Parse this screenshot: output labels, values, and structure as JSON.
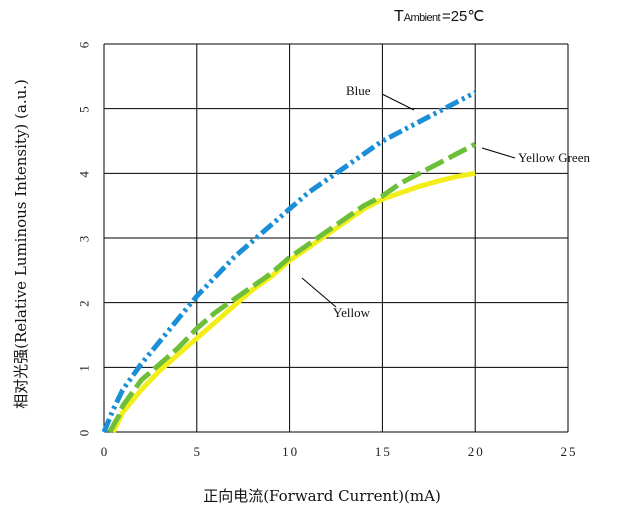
{
  "chart_data": {
    "type": "line",
    "annotation": {
      "prefix": "T",
      "subscript": "Ambient",
      "value": "=25℃"
    },
    "xlabel": "正向电流(Forward Current)(mA)",
    "ylabel": "相对光强(Relative Luminous Intensity) (a.u.)",
    "xlim": [
      0,
      25
    ],
    "ylim": [
      0,
      6
    ],
    "x_ticks": [
      "0",
      "5",
      "10",
      "15",
      "20",
      "25"
    ],
    "y_ticks": [
      "0",
      "1",
      "2",
      "3",
      "4",
      "5",
      "6"
    ],
    "grid": true,
    "colors": {
      "blue": "#1a8fd8",
      "yellow_green": "#6dbf3a",
      "yellow": "#f3ee1a"
    },
    "series": [
      {
        "name": "Blue",
        "color": "#1a8fd8",
        "style": "dash-dot-dot",
        "x": [
          0,
          0.5,
          1,
          2,
          3,
          4,
          5,
          6,
          7,
          8,
          9,
          10,
          11,
          12,
          13,
          14,
          15,
          16,
          17,
          18,
          19,
          20
        ],
        "y": [
          0,
          0.35,
          0.65,
          1.05,
          1.4,
          1.75,
          2.1,
          2.4,
          2.7,
          2.95,
          3.2,
          3.45,
          3.7,
          3.9,
          4.1,
          4.3,
          4.5,
          4.65,
          4.8,
          4.95,
          5.1,
          5.25
        ]
      },
      {
        "name": "Yellow Green",
        "color": "#6dbf3a",
        "style": "dashed",
        "x": [
          0.3,
          0.8,
          1,
          2,
          3,
          4,
          5,
          6,
          7,
          8,
          9,
          10,
          11,
          12,
          13,
          14,
          15,
          16,
          17,
          18,
          19,
          20
        ],
        "y": [
          0,
          0.25,
          0.4,
          0.8,
          1.05,
          1.3,
          1.6,
          1.85,
          2.05,
          2.25,
          2.45,
          2.7,
          2.9,
          3.1,
          3.3,
          3.5,
          3.65,
          3.85,
          4.0,
          4.15,
          4.3,
          4.45
        ]
      },
      {
        "name": "Yellow",
        "color": "#f3ee1a",
        "style": "solid",
        "x": [
          0.5,
          1,
          2,
          3,
          4,
          5,
          6,
          7,
          8,
          9,
          10,
          11,
          12,
          13,
          14,
          15,
          16,
          17,
          18,
          19,
          20
        ],
        "y": [
          0,
          0.3,
          0.65,
          0.95,
          1.2,
          1.45,
          1.7,
          1.95,
          2.2,
          2.4,
          2.65,
          2.85,
          3.05,
          3.25,
          3.45,
          3.6,
          3.7,
          3.8,
          3.88,
          3.95,
          4.0
        ]
      }
    ]
  }
}
